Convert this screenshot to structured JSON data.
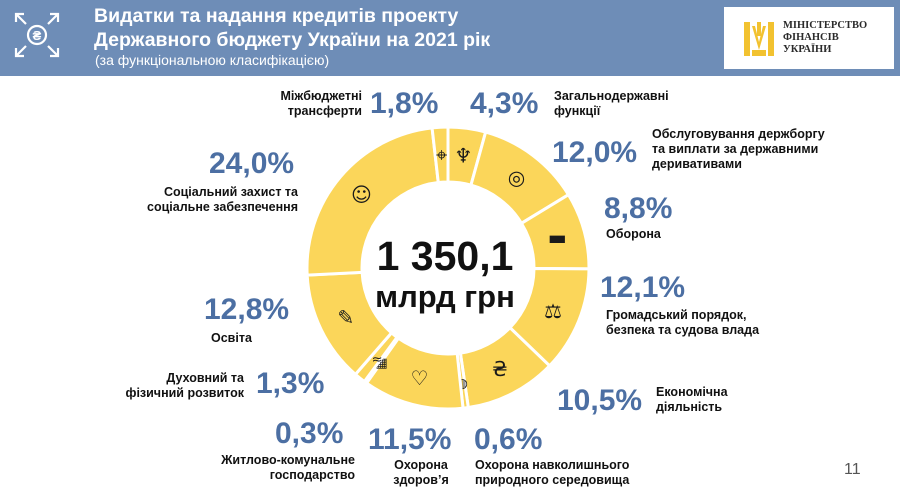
{
  "header": {
    "title_line1": "Видатки та надання кредитів проекту",
    "title_line2": "Державного бюджету України на 2021 рік",
    "subtitle": "(за функціональною класифікацією)",
    "icon": "hryvnia-exchange-icon",
    "background_color": "#6E8DB7"
  },
  "logo": {
    "line1": "МІНІСТЕРСТВО",
    "line2": "ФІНАНСІВ",
    "line3": "УКРАЇНИ",
    "icon": "trident-emblem-icon",
    "color": "#F2C230"
  },
  "center": {
    "value": "1 350,1",
    "unit": "млрд грн"
  },
  "page_number": "11",
  "chart_data": {
    "type": "pie",
    "variant": "donut",
    "total": "1 350,1 млрд грн",
    "ring_color": "#FBD65A",
    "label_color": "#4C6FA3",
    "order": "clockwise from top",
    "categories": [
      "Загальнодержавні функції",
      "Обслуговування держборгу та виплати за державними деривативами",
      "Оборона",
      "Громадський порядок, безпека та судова влада",
      "Економічна діяльність",
      "Охорона навколишнього природного середовища",
      "Охорона здоров’я",
      "Житлово-комунальне господарство",
      "Духовний та фізичний розвиток",
      "Освіта",
      "Соціальний захист та соціальне забезпечення",
      "Міжбюджетні трансферти"
    ],
    "values": [
      4.3,
      12.0,
      8.8,
      12.1,
      10.5,
      0.6,
      11.5,
      0.3,
      1.3,
      12.8,
      24.0,
      1.8
    ],
    "value_labels": [
      "4,3%",
      "12,0%",
      "8,8%",
      "12,1%",
      "10,5%",
      "0,6%",
      "11,5%",
      "0,3%",
      "1,3%",
      "12,8%",
      "24,0%",
      "1,8%"
    ],
    "icons": [
      "trident-icon",
      "coins-icon",
      "tank-icon",
      "scales-icon",
      "hand-coin-icon",
      "hand-globe-icon",
      "hand-heart-icon",
      "building-icon",
      "swimmer-icon",
      "book-pen-icon",
      "family-icon",
      "location-pin-icon"
    ]
  }
}
